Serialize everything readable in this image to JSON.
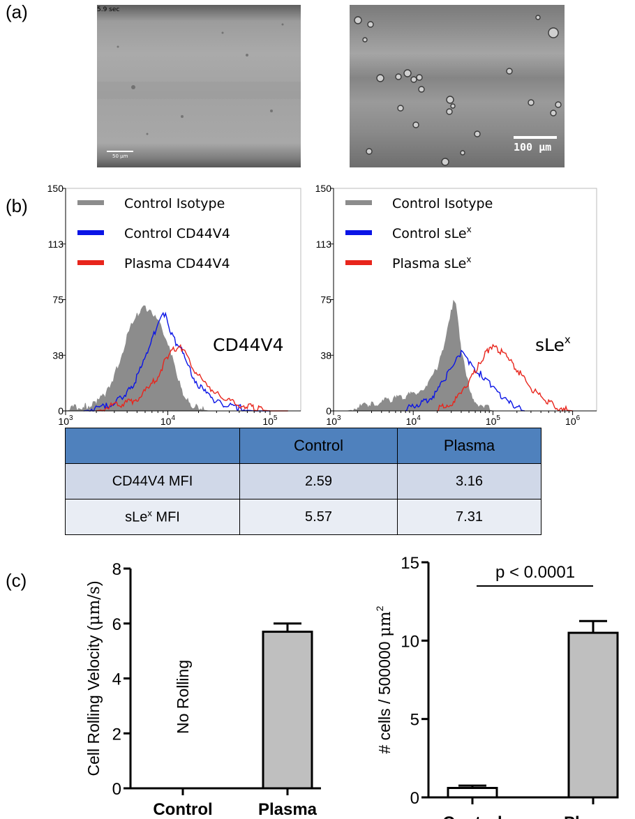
{
  "labels": {
    "a": "(a)",
    "b": "(b)",
    "c": "(c)"
  },
  "micrographs": [
    {
      "timestamp": "5.9 sec",
      "scalebar": "50 µm"
    },
    {
      "scalebar": "100 µm"
    }
  ],
  "mfi_table": {
    "headers": [
      "",
      "Control",
      "Plasma"
    ],
    "rows": [
      {
        "label": "CD44V4 MFI",
        "values": [
          "2.59",
          "3.16"
        ]
      },
      {
        "label_main": "sLe",
        "label_sup": "x",
        "label_tail": " MFI",
        "values": [
          "5.57",
          "7.31"
        ]
      }
    ]
  },
  "chart_data": [
    {
      "type": "area",
      "annotation": "CD44V4",
      "xscale": "log",
      "xlim": [
        1000,
        200000
      ],
      "ylim": [
        0,
        150
      ],
      "yticks": [
        "0",
        "38",
        "75",
        "113",
        "150"
      ],
      "xticks": [
        {
          "base": "10",
          "exp": "3"
        },
        {
          "base": "10",
          "exp": "4"
        },
        {
          "base": "10",
          "exp": "5"
        }
      ],
      "legend": {
        "position": "top-left",
        "entries": [
          {
            "name": "Control Isotype",
            "color": "#8c8c8c"
          },
          {
            "name": "Control CD44V4",
            "color": "#0a14e6"
          },
          {
            "name": "Plasma CD44V4",
            "color": "#e8251c"
          }
        ]
      },
      "series": [
        {
          "name": "Control Isotype",
          "color": "#8c8c8c",
          "x": [
            1000,
            1600,
            2000,
            2500,
            3000,
            3500,
            4000,
            4500,
            5000,
            5500,
            6000,
            6500,
            7000,
            7500,
            8000,
            8500,
            9000,
            9500,
            10000,
            11000,
            12000,
            13000,
            14000,
            15000,
            16000,
            18000,
            20000,
            25000,
            30000
          ],
          "y": [
            0,
            2,
            4,
            10,
            22,
            35,
            48,
            58,
            63,
            66,
            68,
            67,
            65,
            64,
            60,
            55,
            52,
            49,
            45,
            35,
            25,
            17,
            11,
            7,
            4,
            2,
            1,
            0,
            0
          ]
        },
        {
          "name": "Control CD44V4",
          "color": "#0a14e6",
          "x": [
            1500,
            2500,
            3500,
            4500,
            5500,
            6500,
            7500,
            8500,
            9000,
            9500,
            10000,
            11000,
            12000,
            13000,
            14000,
            15000,
            17000,
            20000,
            25000,
            30000,
            40000,
            50000,
            70000,
            100000
          ],
          "y": [
            0,
            2,
            8,
            15,
            28,
            40,
            52,
            60,
            65,
            63,
            58,
            50,
            45,
            42,
            38,
            32,
            24,
            16,
            9,
            5,
            2,
            1,
            0,
            0
          ]
        },
        {
          "name": "Plasma CD44V4",
          "color": "#e8251c",
          "x": [
            2000,
            3500,
            5000,
            6500,
            8000,
            9000,
            10000,
            11000,
            12000,
            13000,
            14000,
            15000,
            17000,
            20000,
            25000,
            30000,
            40000,
            50000,
            70000,
            100000,
            150000
          ],
          "y": [
            0,
            3,
            7,
            14,
            22,
            30,
            36,
            39,
            41,
            42,
            40,
            36,
            30,
            22,
            15,
            11,
            6,
            3,
            1,
            0,
            0
          ]
        }
      ]
    },
    {
      "type": "area",
      "annotation_main": "sLe",
      "annotation_sup": "x",
      "xscale": "log",
      "xlim": [
        1000,
        2000000
      ],
      "ylim": [
        0,
        150
      ],
      "yticks": [
        "0",
        "38",
        "75",
        "113",
        "150"
      ],
      "xticks": [
        {
          "base": "10",
          "exp": "3"
        },
        {
          "base": "10",
          "exp": "4"
        },
        {
          "base": "10",
          "exp": "5"
        },
        {
          "base": "10",
          "exp": "6"
        }
      ],
      "legend": {
        "position": "top-left",
        "entries": [
          {
            "name": "Control Isotype",
            "color": "#8c8c8c"
          },
          {
            "name_main": "Control sLe",
            "name_sup": "x",
            "color": "#0a14e6"
          },
          {
            "name_main": "Plasma sLe",
            "name_sup": "x",
            "color": "#e8251c"
          }
        ]
      },
      "series": [
        {
          "name": "Control Isotype",
          "color": "#8c8c8c",
          "x": [
            1500,
            3000,
            5000,
            8000,
            12000,
            16000,
            20000,
            24000,
            27000,
            30000,
            32000,
            34000,
            36000,
            38000,
            40000,
            43000,
            46000,
            50000,
            55000,
            60000,
            70000,
            80000,
            100000,
            130000
          ],
          "y": [
            0,
            3,
            6,
            8,
            12,
            18,
            27,
            40,
            55,
            66,
            72,
            70,
            60,
            50,
            40,
            30,
            22,
            15,
            9,
            5,
            2,
            1,
            0,
            0
          ]
        },
        {
          "name": "Control sLe",
          "color": "#0a14e6",
          "x": [
            8000,
            15000,
            20000,
            25000,
            30000,
            35000,
            40000,
            45000,
            50000,
            60000,
            70000,
            80000,
            100000,
            130000,
            160000,
            200000,
            250000
          ],
          "y": [
            0,
            6,
            12,
            20,
            28,
            34,
            38,
            35,
            32,
            26,
            24,
            20,
            15,
            8,
            4,
            1,
            0
          ]
        },
        {
          "name": "Plasma sLe",
          "color": "#e8251c",
          "x": [
            20000,
            30000,
            40000,
            50000,
            60000,
            70000,
            80000,
            90000,
            100000,
            120000,
            150000,
            180000,
            220000,
            260000,
            300000,
            400000,
            500000,
            700000,
            1000000
          ],
          "y": [
            0,
            4,
            10,
            18,
            26,
            32,
            38,
            40,
            42,
            40,
            36,
            30,
            24,
            18,
            14,
            8,
            4,
            1,
            0
          ]
        }
      ]
    },
    {
      "type": "bar",
      "categories": [
        "Control",
        "Plasma"
      ],
      "values": [
        0,
        5.7
      ],
      "errors": [
        0,
        0.3
      ],
      "bar_colors": [
        "#ffffff",
        "#bfbfbf"
      ],
      "ylabel_main": "Cell Rolling Velocity (",
      "ylabel_unit": "μm/s",
      "ylabel_tail": ")",
      "ylim": [
        0,
        8
      ],
      "yticks": [
        "0",
        "2",
        "4",
        "6",
        "8"
      ],
      "annotation": "No Rolling"
    },
    {
      "type": "bar",
      "categories": [
        "Control",
        "Plasma"
      ],
      "values": [
        0.6,
        10.5
      ],
      "errors": [
        0.15,
        0.75
      ],
      "bar_colors": [
        "#ffffff",
        "#bfbfbf"
      ],
      "ylabel_main": "# cells / 500000 ",
      "ylabel_unit": "μm",
      "ylabel_sup": "2",
      "ylim": [
        0,
        15
      ],
      "yticks": [
        "0",
        "5",
        "10",
        "15"
      ],
      "annotation": "p < 0.0001"
    }
  ]
}
